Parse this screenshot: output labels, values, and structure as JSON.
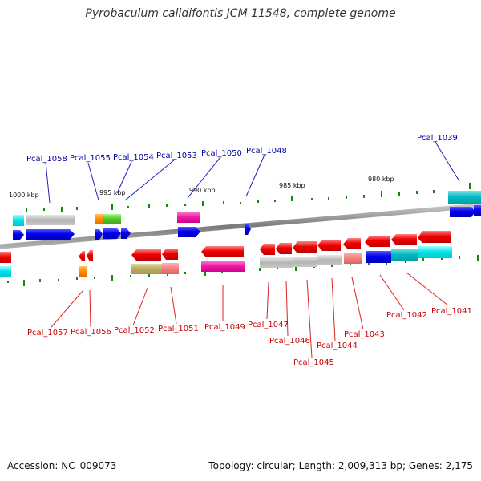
{
  "title": "Pyrobaculum calidifontis JCM 11548, complete genome",
  "footer": {
    "accession": "Accession: NC_009073",
    "summary": "Topology: circular; Length: 2,009,313 bp; Genes: 2,175"
  },
  "scale_labels": [
    "1000 kbp",
    "995 kbp",
    "990 kbp",
    "985 kbp",
    "980 kbp"
  ],
  "gene_labels_top": [
    "Pcal_1058",
    "Pcal_1055",
    "Pcal_1054",
    "Pcal_1053",
    "Pcal_1050",
    "Pcal_1048",
    "Pcal_1039"
  ],
  "gene_labels_bottom": [
    "Pcal_1057",
    "Pcal_1056",
    "Pcal_1052",
    "Pcal_1051",
    "Pcal_1049",
    "Pcal_1047",
    "Pcal_1046",
    "Pcal_1045",
    "Pcal_1044",
    "Pcal_1043",
    "Pcal_1042",
    "Pcal_1041"
  ],
  "colors": {
    "forward_gene": "#0000ee",
    "reverse_gene": "#ee0000",
    "label_top": "#0000aa",
    "label_bottom": "#cc0000",
    "backbone": "#8a8a8a",
    "gc_tick": "#118811"
  }
}
